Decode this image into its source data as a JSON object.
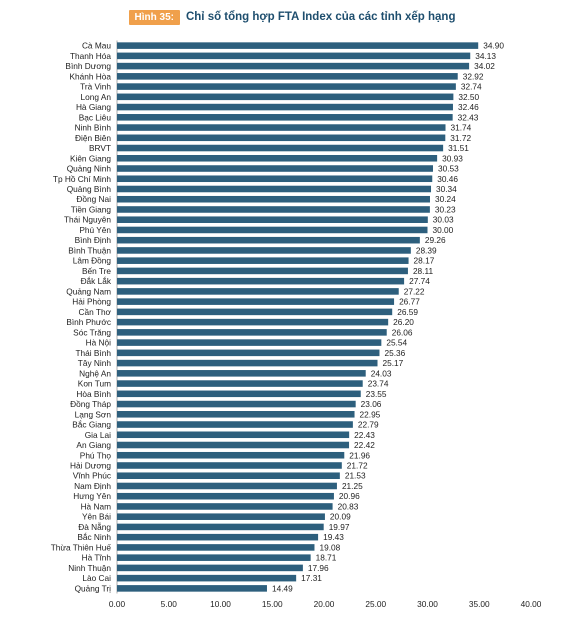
{
  "header": {
    "figure_label": "Hình 35:",
    "title": "Chỉ số tổng hợp FTA Index của các tỉnh xếp hạng"
  },
  "colors": {
    "bar": "#2d5f7d",
    "label_bg": "#f0a04b",
    "title": "#1e4e6e"
  },
  "chart_data": {
    "type": "bar",
    "orientation": "horizontal",
    "title": "Chỉ số tổng hợp FTA Index của các tỉnh xếp hạng",
    "categories": [
      "Cà Mau",
      "Thanh Hóa",
      "Bình Dương",
      "Khánh Hòa",
      "Trà Vinh",
      "Long An",
      "Hà Giang",
      "Bạc Liêu",
      "Ninh Bình",
      "Điện Biên",
      "BRVT",
      "Kiên Giang",
      "Quảng Ninh",
      "Tp Hồ Chí Minh",
      "Quảng Bình",
      "Đồng Nai",
      "Tiền Giang",
      "Thái Nguyên",
      "Phú Yên",
      "Bình Định",
      "Bình Thuận",
      "Lâm Đồng",
      "Bến Tre",
      "Đắk Lắk",
      "Quảng Nam",
      "Hải Phòng",
      "Cần Thơ",
      "Bình Phước",
      "Sóc Trăng",
      "Hà Nội",
      "Thái Bình",
      "Tây Ninh",
      "Nghệ An",
      "Kon Tum",
      "Hòa Bình",
      "Đồng Tháp",
      "Lạng Sơn",
      "Bắc Giang",
      "Gia Lai",
      "An Giang",
      "Phú Thọ",
      "Hải Dương",
      "Vĩnh Phúc",
      "Nam Định",
      "Hưng Yên",
      "Hà Nam",
      "Yên Bái",
      "Đà Nẵng",
      "Bắc Ninh",
      "Thừa Thiên Huế",
      "Hà Tĩnh",
      "Ninh Thuận",
      "Lào Cai",
      "Quảng Trị"
    ],
    "values": [
      34.9,
      34.13,
      34.02,
      32.92,
      32.74,
      32.5,
      32.46,
      32.43,
      31.74,
      31.72,
      31.51,
      30.93,
      30.53,
      30.46,
      30.34,
      30.24,
      30.23,
      30.03,
      30.0,
      29.26,
      28.39,
      28.17,
      28.11,
      27.74,
      27.22,
      26.77,
      26.59,
      26.2,
      26.06,
      25.54,
      25.36,
      25.17,
      24.03,
      23.74,
      23.55,
      23.06,
      22.95,
      22.79,
      22.43,
      22.42,
      21.96,
      21.72,
      21.53,
      21.25,
      20.96,
      20.83,
      20.09,
      19.97,
      19.43,
      19.08,
      18.71,
      17.96,
      17.31,
      14.49
    ],
    "value_labels": [
      "34.90",
      "34.13",
      "34.02",
      "32.92",
      "32.74",
      "32.50",
      "32.46",
      "32.43",
      "31.74",
      "31.72",
      "31.51",
      "30.93",
      "30.53",
      "30.46",
      "30.34",
      "30.24",
      "30.23",
      "30.03",
      "30.00",
      "29.26",
      "28.39",
      "28.17",
      "28.11",
      "27.74",
      "27.22",
      "26.77",
      "26.59",
      "26.20",
      "26.06",
      "25.54",
      "25.36",
      "25.17",
      "24.03",
      "23.74",
      "23.55",
      "23.06",
      "22.95",
      "22.79",
      "22.43",
      "22.42",
      "21.96",
      "21.72",
      "21.53",
      "21.25",
      "20.96",
      "20.83",
      "20.09",
      "19.97",
      "19.43",
      "19.08",
      "18.71",
      "17.96",
      "17.31",
      "14.49"
    ],
    "xlim": [
      0,
      40
    ],
    "xticks": [
      "0.00",
      "5.00",
      "10.00",
      "15.00",
      "20.00",
      "25.00",
      "30.00",
      "35.00",
      "40.00"
    ],
    "grid": false,
    "legend": "none"
  }
}
